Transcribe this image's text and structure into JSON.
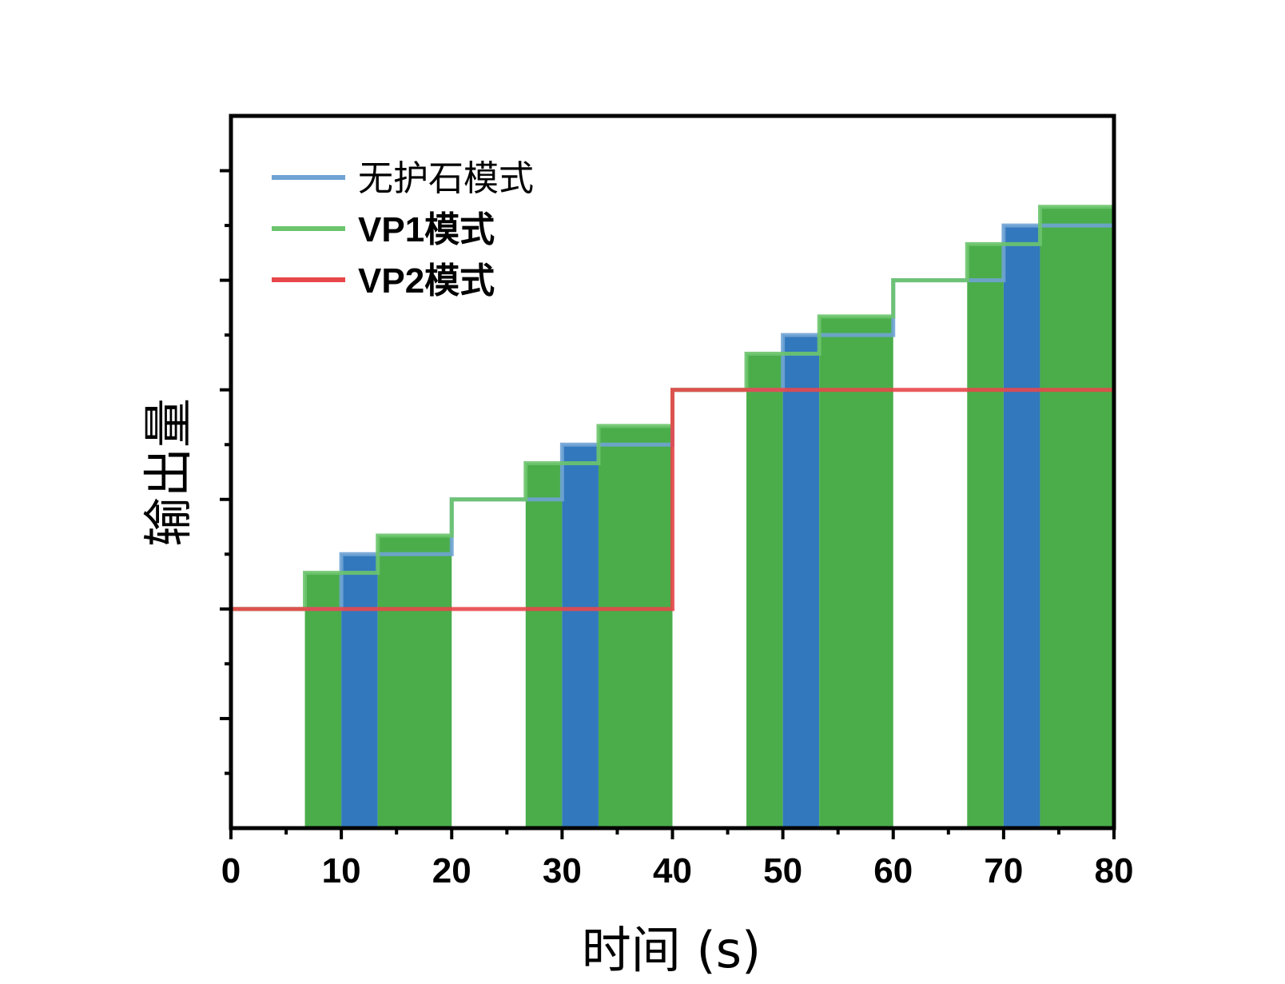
{
  "chart_data": {
    "type": "line",
    "xlabel": "时间 (s)",
    "ylabel": "输出量",
    "xlim": [
      0,
      80
    ],
    "ylim": [
      0,
      6.5
    ],
    "xticks": [
      "0",
      "10",
      "20",
      "30",
      "40",
      "50",
      "60",
      "70",
      "80"
    ],
    "grid": false,
    "legend_position": "top-left",
    "series": [
      {
        "name": "无护石模式",
        "style": "step",
        "color": "#6fa3d4",
        "steps": [
          [
            0,
            2
          ],
          [
            10,
            2.5
          ],
          [
            20,
            3
          ],
          [
            30,
            3.5
          ],
          [
            40,
            4
          ],
          [
            50,
            4.5
          ],
          [
            60,
            5
          ],
          [
            70,
            5.5
          ],
          [
            80,
            5.5
          ]
        ]
      },
      {
        "name": "VP1模式",
        "style": "step",
        "color": "#6cc46c",
        "steps": [
          [
            0,
            2
          ],
          [
            6.7,
            2.33
          ],
          [
            13.3,
            2.67
          ],
          [
            20,
            3
          ],
          [
            26.7,
            3.33
          ],
          [
            33.3,
            3.67
          ],
          [
            40,
            4
          ],
          [
            46.7,
            4.33
          ],
          [
            53.3,
            4.67
          ],
          [
            60,
            5
          ],
          [
            66.7,
            5.33
          ],
          [
            73.3,
            5.67
          ],
          [
            80,
            5.67
          ]
        ]
      },
      {
        "name": "VP2模式",
        "style": "step",
        "color": "#e8474a",
        "steps": [
          [
            0,
            2
          ],
          [
            40,
            4
          ],
          [
            80,
            4
          ]
        ]
      }
    ],
    "bars": [
      {
        "color": "#4aad4a",
        "x0": 6.7,
        "x1": 10,
        "y": 2.33
      },
      {
        "color": "#3278bd",
        "x0": 10,
        "x1": 13.3,
        "y": 2.5
      },
      {
        "color": "#4aad4a",
        "x0": 13.3,
        "x1": 20,
        "y": 2.67
      },
      {
        "color": "#4aad4a",
        "x0": 26.7,
        "x1": 30,
        "y": 3.33
      },
      {
        "color": "#3278bd",
        "x0": 30,
        "x1": 33.3,
        "y": 3.5
      },
      {
        "color": "#4aad4a",
        "x0": 33.3,
        "x1": 40,
        "y": 3.67
      },
      {
        "color": "#4aad4a",
        "x0": 46.7,
        "x1": 50,
        "y": 4.33
      },
      {
        "color": "#3278bd",
        "x0": 50,
        "x1": 53.3,
        "y": 4.5
      },
      {
        "color": "#4aad4a",
        "x0": 53.3,
        "x1": 60,
        "y": 4.67
      },
      {
        "color": "#4aad4a",
        "x0": 66.7,
        "x1": 70,
        "y": 5.33
      },
      {
        "color": "#3278bd",
        "x0": 70,
        "x1": 73.3,
        "y": 5.5
      },
      {
        "color": "#4aad4a",
        "x0": 73.3,
        "x1": 80,
        "y": 5.67
      }
    ]
  }
}
